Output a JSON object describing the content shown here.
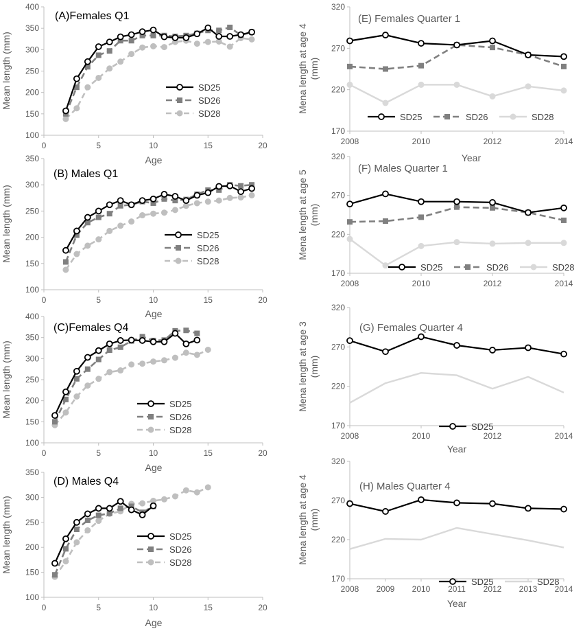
{
  "chart_data": [
    {
      "id": "A",
      "type": "line",
      "title": "(A)Females Q1",
      "xlabel": "Age",
      "ylabel": "Mean length (mm)",
      "xlim": [
        0,
        20
      ],
      "ylim": [
        100,
        400
      ],
      "xticks": [
        0,
        5,
        10,
        15,
        20
      ],
      "yticks": [
        100,
        150,
        200,
        250,
        300,
        350,
        400
      ],
      "legend_position": "center-right",
      "series": [
        {
          "name": "SD25",
          "style": "black-open-circle",
          "x": [
            2,
            3,
            4,
            5,
            6,
            7,
            8,
            9,
            10,
            11,
            12,
            13,
            14,
            15,
            16,
            17,
            18,
            19
          ],
          "y": [
            157,
            232,
            272,
            307,
            318,
            330,
            335,
            342,
            346,
            330,
            328,
            328,
            337,
            351,
            331,
            331,
            335,
            341
          ]
        },
        {
          "name": "SD26",
          "style": "gray-square-dash",
          "x": [
            2,
            3,
            4,
            5,
            6,
            7,
            8,
            9,
            10,
            11,
            12,
            13,
            14,
            15,
            16,
            17,
            18,
            19
          ],
          "y": [
            150,
            212,
            260,
            287,
            297,
            321,
            321,
            333,
            333,
            333,
            331,
            333,
            338,
            345,
            345,
            352,
            334,
            341
          ]
        },
        {
          "name": "SD28",
          "style": "lightgray-dot-dash",
          "x": [
            2,
            3,
            4,
            5,
            6,
            7,
            8,
            9,
            10,
            11,
            12,
            13,
            14,
            15,
            16,
            17,
            18,
            19
          ],
          "y": [
            138,
            163,
            212,
            234,
            256,
            272,
            290,
            305,
            308,
            306,
            318,
            321,
            314,
            318,
            319,
            307,
            327,
            324
          ]
        }
      ]
    },
    {
      "id": "B",
      "type": "line",
      "title": "(B) Males Q1",
      "xlabel": "Age",
      "ylabel": "Mean length (mm)",
      "xlim": [
        0,
        20
      ],
      "ylim": [
        100,
        350
      ],
      "xticks": [
        0,
        5,
        10,
        15,
        20
      ],
      "yticks": [
        100,
        150,
        200,
        250,
        300,
        350
      ],
      "legend_position": "bottom-right",
      "series": [
        {
          "name": "SD25",
          "style": "black-open-circle",
          "x": [
            2,
            3,
            4,
            5,
            6,
            7,
            8,
            9,
            10,
            11,
            12,
            13,
            14,
            15,
            16,
            17,
            18,
            19
          ],
          "y": [
            175,
            212,
            238,
            250,
            262,
            270,
            262,
            270,
            273,
            282,
            278,
            270,
            280,
            285,
            297,
            298,
            287,
            293
          ]
        },
        {
          "name": "SD26",
          "style": "gray-square-dash",
          "x": [
            2,
            3,
            4,
            5,
            6,
            7,
            8,
            9,
            10,
            11,
            12,
            13,
            14,
            15,
            16,
            17,
            18,
            19
          ],
          "y": [
            153,
            204,
            228,
            238,
            245,
            260,
            262,
            268,
            265,
            273,
            270,
            272,
            282,
            290,
            290,
            300,
            298,
            300
          ]
        },
        {
          "name": "SD28",
          "style": "lightgray-dot-dash",
          "x": [
            2,
            3,
            4,
            5,
            6,
            7,
            8,
            9,
            10,
            11,
            12,
            13,
            14,
            15,
            16,
            17,
            18,
            19
          ],
          "y": [
            138,
            168,
            184,
            196,
            212,
            222,
            230,
            242,
            245,
            247,
            252,
            260,
            265,
            268,
            270,
            275,
            276,
            280
          ]
        }
      ]
    },
    {
      "id": "C",
      "type": "line",
      "title": "(C)Females Q4",
      "xlabel": "Age",
      "ylabel": "Mean length (mm)",
      "xlim": [
        0,
        20
      ],
      "ylim": [
        100,
        400
      ],
      "xticks": [
        0,
        5,
        10,
        15,
        20
      ],
      "yticks": [
        100,
        150,
        200,
        250,
        300,
        350,
        400
      ],
      "legend_position": "bottom-center",
      "series": [
        {
          "name": "SD25",
          "style": "black-open-circle",
          "x": [
            1,
            2,
            3,
            4,
            5,
            6,
            7,
            8,
            9,
            10,
            11,
            12,
            13,
            14
          ],
          "y": [
            165,
            221,
            270,
            303,
            319,
            335,
            343,
            344,
            343,
            340,
            340,
            360,
            335,
            344
          ]
        },
        {
          "name": "SD26",
          "style": "gray-square-dash",
          "x": [
            1,
            2,
            3,
            4,
            5,
            6,
            7,
            8,
            9,
            10,
            11,
            12,
            13,
            14
          ],
          "y": [
            150,
            203,
            252,
            275,
            298,
            320,
            327,
            342,
            352,
            343,
            344,
            366,
            367,
            360
          ]
        },
        {
          "name": "SD28",
          "style": "lightgray-dot-dash",
          "x": [
            1,
            2,
            3,
            4,
            5,
            6,
            7,
            8,
            9,
            10,
            11,
            12,
            13,
            14,
            15
          ],
          "y": [
            142,
            172,
            210,
            236,
            252,
            268,
            272,
            286,
            288,
            293,
            296,
            302,
            314,
            309,
            321
          ]
        }
      ]
    },
    {
      "id": "D",
      "type": "line",
      "title": "(D) Males Q4",
      "xlabel": "Age",
      "ylabel": "Mean length (mm)",
      "xlim": [
        0,
        20
      ],
      "ylim": [
        100,
        350
      ],
      "xticks": [
        0,
        5,
        10,
        15,
        20
      ],
      "yticks": [
        100,
        150,
        200,
        250,
        300,
        350
      ],
      "legend_position": "bottom-center",
      "series": [
        {
          "name": "SD25",
          "style": "black-open-circle",
          "x": [
            1,
            2,
            3,
            4,
            5,
            6,
            7,
            8,
            9,
            10
          ],
          "y": [
            168,
            217,
            250,
            267,
            278,
            278,
            292,
            275,
            265,
            283
          ]
        },
        {
          "name": "SD26",
          "style": "gray-square-dash",
          "x": [
            1,
            2,
            3,
            4,
            5,
            6,
            7,
            8,
            9,
            10
          ],
          "y": [
            145,
            197,
            236,
            254,
            264,
            268,
            278,
            282,
            270,
            282
          ]
        },
        {
          "name": "SD28",
          "style": "lightgray-dot-dash",
          "x": [
            1,
            2,
            3,
            4,
            5,
            6,
            7,
            8,
            9,
            10,
            11,
            12,
            13,
            14,
            15
          ],
          "y": [
            141,
            172,
            210,
            234,
            253,
            267,
            272,
            287,
            288,
            293,
            296,
            302,
            314,
            310,
            320
          ]
        }
      ]
    },
    {
      "id": "E",
      "type": "line",
      "title": "(E) Females Quarter 1",
      "xlabel": "Year",
      "ylabel": "Mena length at age 4 (mm)",
      "xlim": [
        2008,
        2014
      ],
      "ylim": [
        170,
        320
      ],
      "xticks": [
        2008,
        2010,
        2012,
        2014
      ],
      "yticks": [
        170,
        220,
        270,
        320
      ],
      "legend_position": "bottom",
      "series": [
        {
          "name": "SD25",
          "style": "black-open-circle",
          "x": [
            2008,
            2009,
            2010,
            2011,
            2012,
            2013,
            2014
          ],
          "y": [
            279,
            286,
            276,
            274,
            279,
            262,
            260
          ]
        },
        {
          "name": "SD26",
          "style": "gray-square-dash",
          "x": [
            2008,
            2009,
            2010,
            2011,
            2012,
            2013,
            2014
          ],
          "y": [
            248,
            245,
            249,
            274,
            271,
            262,
            248
          ]
        },
        {
          "name": "SD28",
          "style": "lightgray-dot",
          "x": [
            2008,
            2009,
            2010,
            2011,
            2012,
            2013,
            2014
          ],
          "y": [
            226,
            204,
            226,
            226,
            212,
            224,
            219
          ]
        }
      ]
    },
    {
      "id": "F",
      "type": "line",
      "title": "(F) Males Quarter 1",
      "xlabel": "",
      "ylabel": "Mena length at age 5 (mm)",
      "xlim": [
        2008,
        2014
      ],
      "ylim": [
        170,
        320
      ],
      "xticks": [
        2008,
        2010,
        2012,
        2014
      ],
      "yticks": [
        170,
        220,
        270,
        320
      ],
      "legend_position": "bottom",
      "series": [
        {
          "name": "SD25",
          "style": "black-open-circle",
          "x": [
            2008,
            2009,
            2010,
            2011,
            2012,
            2013,
            2014
          ],
          "y": [
            259,
            272,
            262,
            262,
            261,
            248,
            254
          ]
        },
        {
          "name": "SD26",
          "style": "gray-square-dash",
          "x": [
            2008,
            2009,
            2010,
            2011,
            2012,
            2013,
            2014
          ],
          "y": [
            236,
            237,
            242,
            255,
            254,
            248,
            238
          ]
        },
        {
          "name": "SD28",
          "style": "lightgray-dot",
          "x": [
            2008,
            2009,
            2010,
            2011,
            2012,
            2013,
            2014
          ],
          "y": [
            214,
            180,
            205,
            210,
            208,
            209,
            209
          ]
        }
      ]
    },
    {
      "id": "G",
      "type": "line",
      "title": "(G) Females Quarter 4",
      "xlabel": "Year",
      "ylabel": "Mena length at age 3 (mm)",
      "xlim": [
        2008,
        2014
      ],
      "ylim": [
        170,
        320
      ],
      "xticks": [
        2008,
        2010,
        2012,
        2014
      ],
      "yticks": [
        170,
        220,
        270,
        320
      ],
      "legend_position": "bottom-center",
      "series": [
        {
          "name": "SD25",
          "style": "black-open-circle",
          "x": [
            2008,
            2009,
            2010,
            2011,
            2012,
            2013,
            2014
          ],
          "y": [
            278,
            264,
            283,
            272,
            266,
            269,
            261
          ]
        },
        {
          "name": "",
          "style": "lightgray-line",
          "x": [
            2008,
            2009,
            2010,
            2011,
            2012,
            2013,
            2014
          ],
          "y": [
            199,
            224,
            237,
            234,
            217,
            232,
            212
          ]
        }
      ]
    },
    {
      "id": "H",
      "type": "line",
      "title": "(H) Males Quarter 4",
      "xlabel": "Year",
      "ylabel": "Mena length at age 4 (mm)",
      "xlim": [
        2008,
        2014
      ],
      "ylim": [
        170,
        320
      ],
      "xticks": [
        2008,
        2009,
        2010,
        2011,
        2012,
        2013,
        2014
      ],
      "yticks": [
        170,
        220,
        270,
        320
      ],
      "legend_position": "bottom-center",
      "series": [
        {
          "name": "SD25",
          "style": "black-open-circle",
          "x": [
            2008,
            2009,
            2010,
            2011,
            2012,
            2013,
            2014
          ],
          "y": [
            266,
            256,
            271,
            267,
            266,
            260,
            259
          ]
        },
        {
          "name": "SD28",
          "style": "lightgray-line",
          "x": [
            2008,
            2009,
            2010,
            2011,
            2012,
            2013,
            2014
          ],
          "y": [
            208,
            221,
            220,
            235,
            227,
            219,
            210
          ]
        }
      ]
    }
  ]
}
